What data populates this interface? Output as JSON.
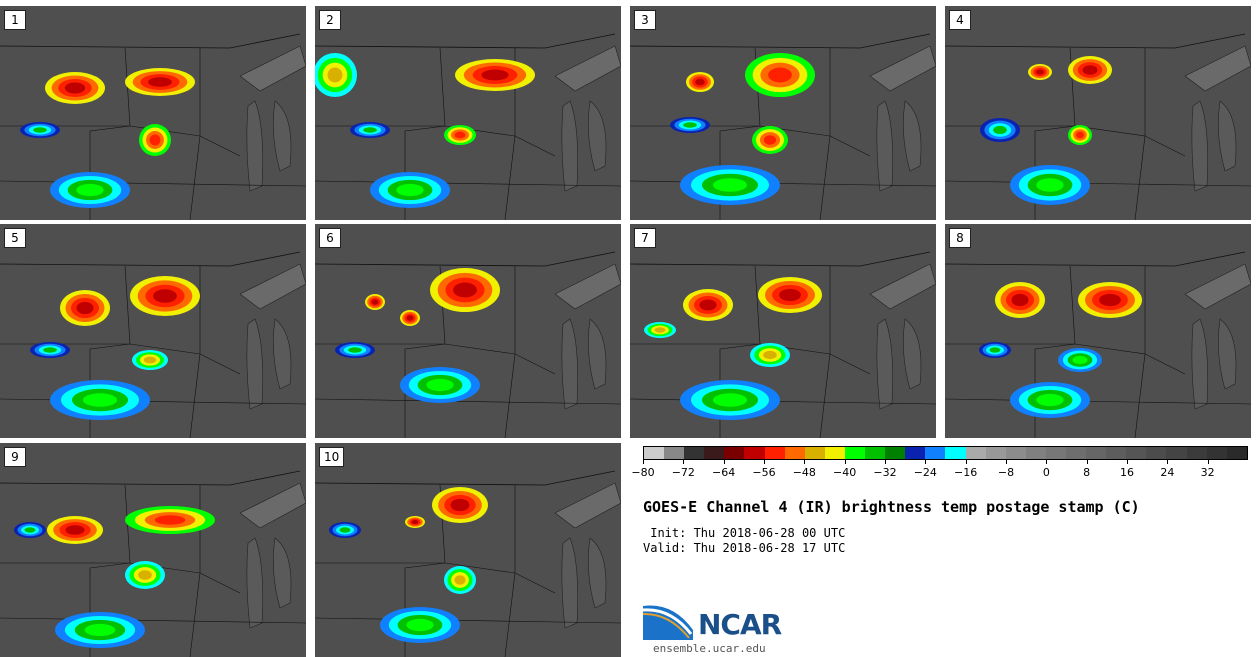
{
  "panels": [
    {
      "label": "1"
    },
    {
      "label": "2"
    },
    {
      "label": "3"
    },
    {
      "label": "4"
    },
    {
      "label": "5"
    },
    {
      "label": "6"
    },
    {
      "label": "7"
    },
    {
      "label": "8"
    },
    {
      "label": "9"
    },
    {
      "label": "10"
    }
  ],
  "colorbar": {
    "colors": [
      "#cccccc",
      "#888888",
      "#333333",
      "#3a1a1a",
      "#7a0000",
      "#c00000",
      "#ff2000",
      "#ff6a00",
      "#d8b000",
      "#f0f000",
      "#00ff00",
      "#00c000",
      "#008000",
      "#0a22b0",
      "#1080ff",
      "#00ffff",
      "#aaaaaa",
      "#999999",
      "#8c8c8c",
      "#808080",
      "#777777",
      "#6e6e6e",
      "#666666",
      "#5d5d5d",
      "#555555",
      "#4c4c4c",
      "#444444",
      "#3b3b3b",
      "#333333",
      "#2a2a2a"
    ],
    "tick_labels": [
      "−80",
      "−72",
      "−64",
      "−56",
      "−48",
      "−40",
      "−32",
      "−24",
      "−16",
      "−8",
      "0",
      "8",
      "16",
      "24",
      "32"
    ]
  },
  "title": "GOES-E Channel 4 (IR) brightness temp postage stamp (C)",
  "init": " Init: Thu 2018-06-28 00 UTC",
  "valid": "Valid: Thu 2018-06-28 17 UTC",
  "logo": {
    "text": "NCAR",
    "url": "ensemble.ucar.edu"
  }
}
